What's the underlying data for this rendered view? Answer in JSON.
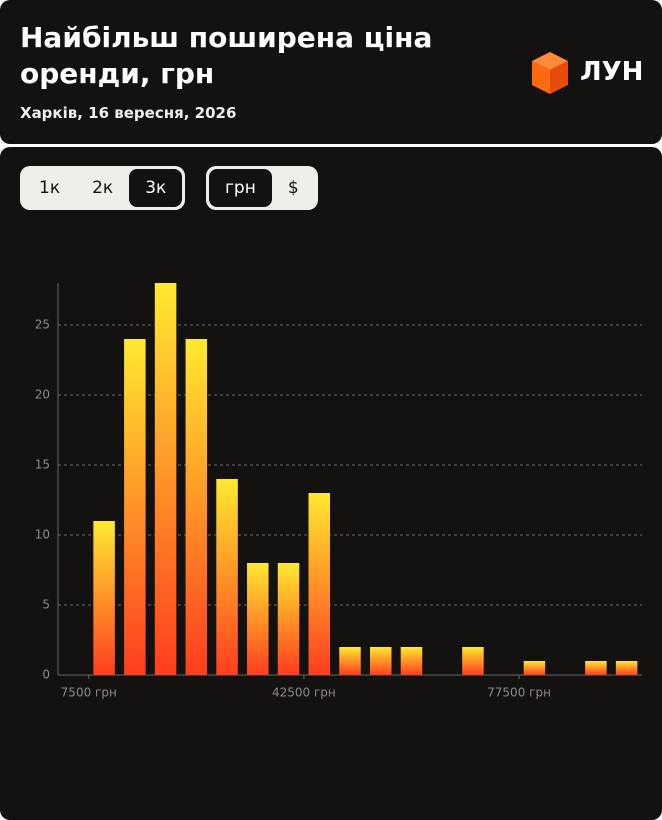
{
  "header": {
    "title": "Найбільш поширена ціна оренди, грн",
    "subtitle": "Харків, 16 вересня, 2026",
    "logo": "ЛУН"
  },
  "controls": {
    "rooms": {
      "options": [
        "1к",
        "2к",
        "3к"
      ],
      "selected": 2
    },
    "currency": {
      "options": [
        "грн",
        "$"
      ],
      "selected": 0
    }
  },
  "chart_data": {
    "type": "histogram",
    "bins": [
      7500,
      12500,
      17500,
      22500,
      27500,
      32500,
      37500,
      42500,
      47500,
      52500,
      57500,
      62500,
      67500,
      72500,
      77500,
      82500,
      87500,
      92500,
      97500
    ],
    "values": [
      11,
      24,
      28,
      24,
      14,
      8,
      8,
      13,
      2,
      2,
      2,
      0,
      2,
      0,
      1,
      0,
      1,
      1
    ],
    "colors": [
      "#ffe930",
      "#ff3d1e"
    ],
    "xlim": [
      2500,
      97500
    ],
    "xticks": [
      {
        "value": 7500,
        "label": "7500 грн"
      },
      {
        "value": 42500,
        "label": "42500 грн"
      },
      {
        "value": 77500,
        "label": "77500 грн"
      }
    ],
    "ylim": [
      0,
      28
    ],
    "yticks": [
      0,
      5,
      10,
      15,
      20,
      25
    ],
    "grid": true
  }
}
